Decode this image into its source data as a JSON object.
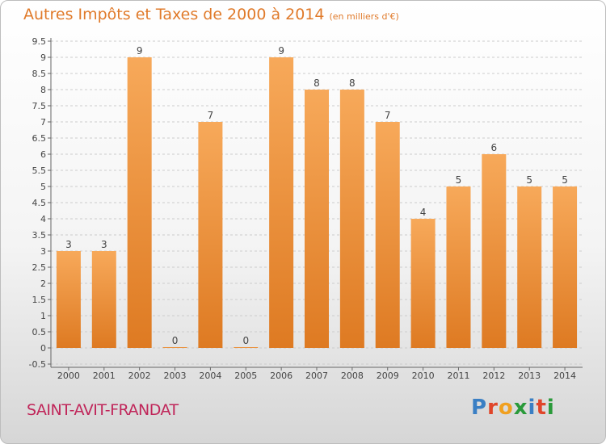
{
  "header": {
    "title": "Autres Impôts et Taxes de 2000 à 2014",
    "unit": "(en milliers d'€)"
  },
  "footer": {
    "commune": "SAINT-AVIT-FRANDAT",
    "logo_letters": [
      "P",
      "r",
      "o",
      "x",
      "i",
      "t",
      "i"
    ],
    "logo_colors": [
      "#3a7fc4",
      "#e0452a",
      "#f0a020",
      "#2a9a3a",
      "#3a7fc4",
      "#e0452a",
      "#2a9a3a"
    ]
  },
  "colors": {
    "bar_top": "#f7a95a",
    "bar_bottom": "#de7a22",
    "text": "#444444",
    "grid": "#cccccc"
  },
  "chart_data": {
    "type": "bar",
    "categories": [
      "2000",
      "2001",
      "2002",
      "2003",
      "2004",
      "2005",
      "2006",
      "2007",
      "2008",
      "2009",
      "2010",
      "2011",
      "2012",
      "2013",
      "2014"
    ],
    "values": [
      3,
      3,
      9,
      0,
      7,
      0,
      9,
      8,
      8,
      7,
      4,
      5,
      6,
      5,
      5
    ],
    "value_labels": [
      "3",
      "3",
      "9",
      "0",
      "7",
      "0",
      "9",
      "8",
      "8",
      "7",
      "4",
      "5",
      "6",
      "5",
      "5"
    ],
    "y_ticks": [
      "-0.5",
      "0",
      "0.5",
      "1",
      "1.5",
      "2",
      "2.5",
      "3",
      "3.5",
      "4",
      "4.5",
      "5",
      "5.5",
      "6",
      "6.5",
      "7",
      "7.5",
      "8",
      "8.5",
      "9",
      "9.5"
    ],
    "ylim": [
      -0.5,
      9.5
    ],
    "grid": true
  }
}
